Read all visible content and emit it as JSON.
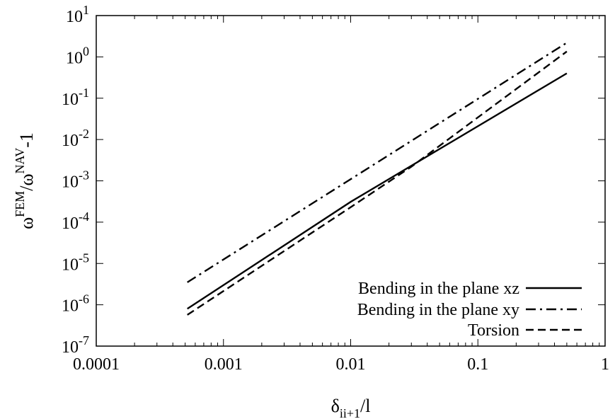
{
  "chart_data": {
    "type": "line",
    "x_scale": "log",
    "y_scale": "log",
    "xlim": [
      0.0001,
      1
    ],
    "ylim": [
      1e-07,
      10
    ],
    "x_ticks": [
      {
        "value": 0.0001,
        "label": "0.0001"
      },
      {
        "value": 0.001,
        "label": "0.001"
      },
      {
        "value": 0.01,
        "label": "0.01"
      },
      {
        "value": 0.1,
        "label": "0.1"
      },
      {
        "value": 1,
        "label": "1"
      }
    ],
    "y_ticks": [
      {
        "value": 1e-07,
        "base": "10",
        "exp": "-7"
      },
      {
        "value": 1e-06,
        "base": "10",
        "exp": "-6"
      },
      {
        "value": 1e-05,
        "base": "10",
        "exp": "-5"
      },
      {
        "value": 0.0001,
        "base": "10",
        "exp": "-4"
      },
      {
        "value": 0.001,
        "base": "10",
        "exp": "-3"
      },
      {
        "value": 0.01,
        "base": "10",
        "exp": "-2"
      },
      {
        "value": 0.1,
        "base": "10",
        "exp": "-1"
      },
      {
        "value": 1,
        "base": "10",
        "exp": "0"
      },
      {
        "value": 10,
        "base": "10",
        "exp": "1"
      }
    ],
    "xlabel": {
      "main": "δ",
      "sub": "ii+1",
      "rest": "/l"
    },
    "ylabel": {
      "w1": "ω",
      "sup1": "FEM",
      "slash": "/ω",
      "sup2": "NAV",
      "rest": "-1"
    },
    "legend_position": "bottom-right",
    "grid": false,
    "series": [
      {
        "name": "Bending in the plane xz",
        "dash": "solid",
        "points": [
          [
            0.00052,
            8e-07
          ],
          [
            0.01,
            0.00031
          ],
          [
            0.5,
            0.4
          ]
        ]
      },
      {
        "name": "Bending in the plane xy",
        "dash": "dashdot",
        "points": [
          [
            0.00052,
            3.5e-06
          ],
          [
            0.5,
            2.2
          ]
        ]
      },
      {
        "name": "Torsion",
        "dash": "dashed",
        "points": [
          [
            0.00052,
            5.7e-07
          ],
          [
            0.01,
            0.00023
          ],
          [
            0.03,
            0.0022
          ],
          [
            0.5,
            1.35
          ]
        ]
      }
    ]
  }
}
